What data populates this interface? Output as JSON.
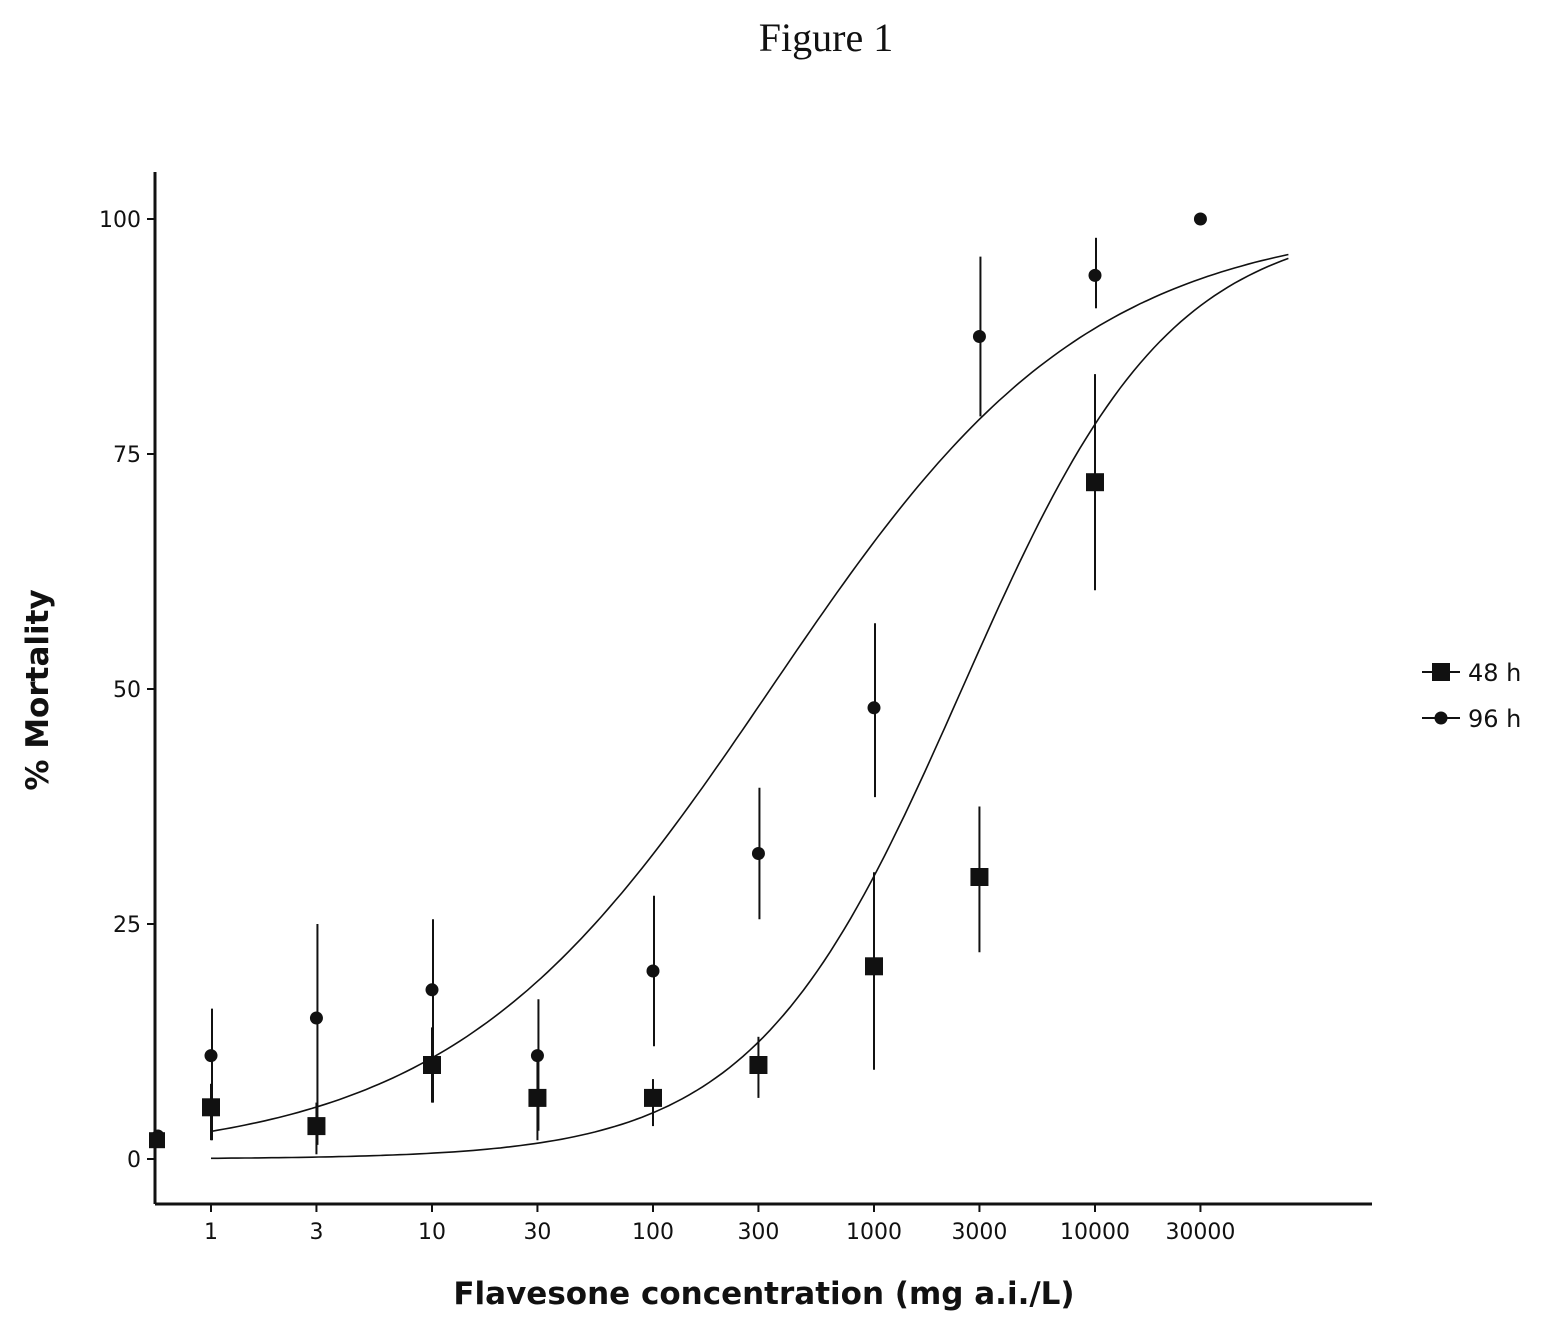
{
  "figure_title": "Figure 1",
  "colors": {
    "ink": "#111111",
    "background": "#ffffff"
  },
  "chart_data": {
    "type": "scatter",
    "title": "",
    "xlabel": "Flavesone concentration (mg a.i./L)",
    "ylabel": "% Mortality",
    "x_scale": "log",
    "x_ticks": [
      1,
      3,
      10,
      30,
      100,
      300,
      1000,
      3000,
      10000,
      30000
    ],
    "x_tick_labels": [
      "1",
      "3",
      "10",
      "30",
      "100",
      "300",
      "1000",
      "3000",
      "10000",
      "30000"
    ],
    "y_ticks": [
      0,
      25,
      50,
      75,
      100
    ],
    "y_tick_labels": [
      "0",
      "25",
      "50",
      "75",
      "100"
    ],
    "xlim": [
      0.55,
      200000
    ],
    "ylim": [
      -5,
      105
    ],
    "grid": false,
    "legend_position": "right",
    "control": {
      "x_label": "0",
      "values_48h": 2,
      "values_96h": 2.5
    },
    "series": [
      {
        "name": "48 h",
        "marker": "square",
        "x": [
          1,
          3,
          10,
          30,
          100,
          300,
          1000,
          3000,
          10000
        ],
        "y": [
          5.5,
          3.5,
          10,
          6.5,
          6.5,
          10,
          20.5,
          30,
          72
        ],
        "err_low": [
          2,
          0.5,
          6,
          2,
          3.5,
          6.5,
          9.5,
          22,
          60.5
        ],
        "err_high": [
          8,
          6,
          14,
          11,
          8.5,
          13,
          30.5,
          37.5,
          83.5
        ],
        "fit_curve": {
          "ec50": 2500,
          "hill": 0.92,
          "x_range": [
            1,
            75000
          ]
        }
      },
      {
        "name": "96 h",
        "marker": "circle",
        "x": [
          1,
          3,
          10,
          30,
          100,
          300,
          1000,
          3000,
          10000,
          30000
        ],
        "y": [
          11,
          15,
          18,
          11,
          20,
          32.5,
          48,
          87.5,
          94,
          100
        ],
        "err_low": [
          2,
          1.5,
          6,
          3,
          12,
          25.5,
          38.5,
          79,
          90.5,
          100
        ],
        "err_high": [
          16,
          25,
          25.5,
          17,
          28,
          39.5,
          57,
          96,
          98,
          100
        ],
        "fit_curve": {
          "ec50": 340,
          "hill": 0.6,
          "x_range": [
            1,
            75000
          ]
        }
      }
    ]
  }
}
